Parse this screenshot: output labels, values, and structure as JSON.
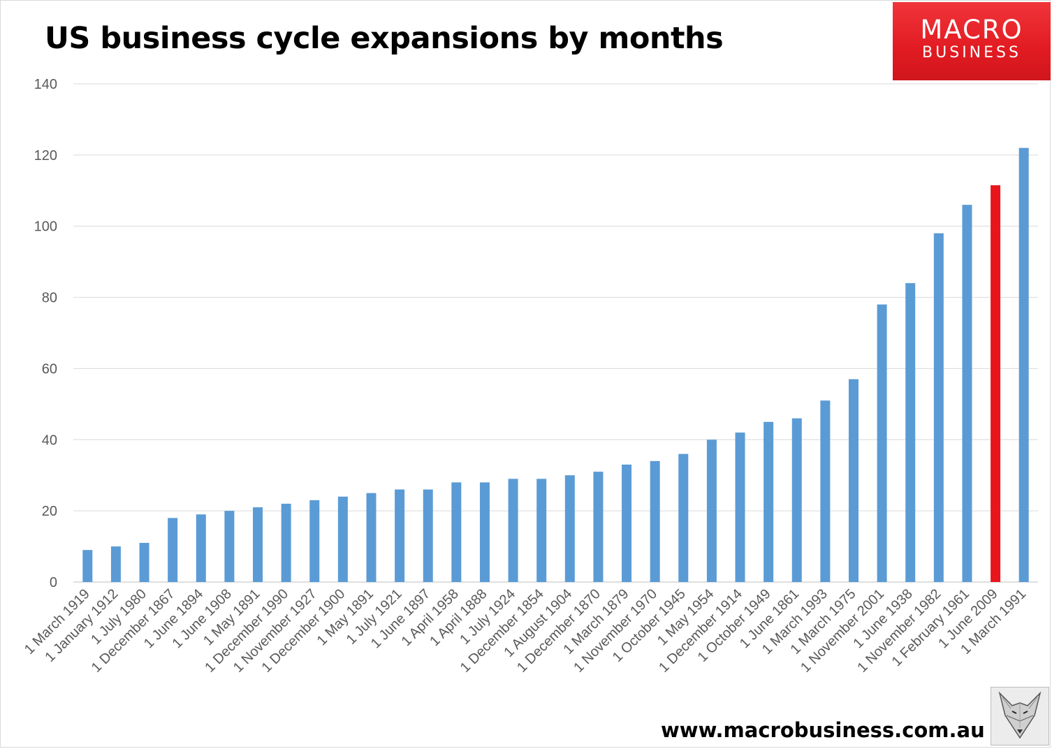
{
  "chart_data": {
    "type": "bar",
    "title": "US business cycle expansions by months",
    "xlabel": "",
    "ylabel": "",
    "ylim": [
      0,
      140
    ],
    "yticks": [
      0,
      20,
      40,
      60,
      80,
      100,
      120,
      140
    ],
    "grid": true,
    "legend": "none",
    "categories": [
      "1 March 1919",
      "1 January 1912",
      "1 July 1980",
      "1 December 1867",
      "1 June 1894",
      "1 June 1908",
      "1 May 1891",
      "1 December 1990",
      "1 November 1927",
      "1 December 1900",
      "1 May 1891",
      "1 July 1921",
      "1 June 1897",
      "1 April 1958",
      "1 April 1888",
      "1 July 1924",
      "1 December 1854",
      "1 August 1904",
      "1 December 1870",
      "1 March 1879",
      "1 November 1970",
      "1 October 1945",
      "1 May 1954",
      "1 December 1914",
      "1 October 1949",
      "1 June 1861",
      "1 March 1993",
      "1 March 1975",
      "1 November 2001",
      "1 June 1938",
      "1 November 1982",
      "1 February 1961",
      "1 June 2009",
      "1 March 1991"
    ],
    "values": [
      9,
      10,
      11,
      18,
      19,
      20,
      21,
      22,
      23,
      24,
      25,
      26,
      26,
      28,
      28,
      29,
      29,
      30,
      31,
      33,
      34,
      36,
      40,
      42,
      45,
      46,
      51,
      57,
      78,
      84,
      98,
      106,
      111.5,
      122
    ],
    "highlight_category": "1 June 2009",
    "colors": {
      "bar": "#5b9bd5",
      "highlight": "#e8161c",
      "grid": "#d9d9d9",
      "tick_text": "#595959"
    }
  },
  "logo": {
    "line1": "MACRO",
    "line2": "BUSINESS"
  },
  "footer": {
    "url": "www.macrobusiness.com.au"
  },
  "icons": {
    "mascot": "fox-icon"
  }
}
